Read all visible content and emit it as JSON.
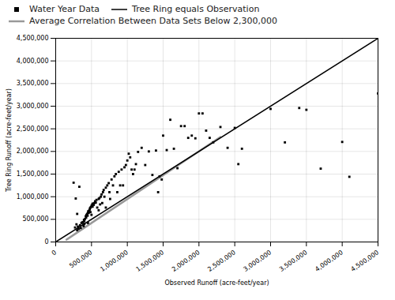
{
  "chart_data": {
    "type": "scatter",
    "xlabel": "Observed Runoff (acre-feet/year)",
    "ylabel": "Tree Ring Runoff (acre-feet/year)",
    "xlim": [
      0,
      4500000
    ],
    "ylim": [
      0,
      4500000
    ],
    "xticks": [
      0,
      {
        "value": 500000,
        "label": "500,000"
      },
      {
        "value": 1000000,
        "label": "1,000,000"
      },
      {
        "value": 1500000,
        "label": "1,500,000"
      },
      {
        "value": 2000000,
        "label": "2,000,000"
      },
      {
        "value": 2500000,
        "label": "2,500,000"
      },
      {
        "value": 3000000,
        "label": "3,000,000"
      },
      {
        "value": 3500000,
        "label": "3,500,000"
      },
      {
        "value": 4000000,
        "label": "4,000,000"
      },
      {
        "value": 4500000,
        "label": "4,500,000"
      }
    ],
    "yticks": [
      0,
      {
        "value": 500000,
        "label": "500,000"
      },
      {
        "value": 1000000,
        "label": "1,000,000"
      },
      {
        "value": 1500000,
        "label": "1,500,000"
      },
      {
        "value": 2000000,
        "label": "2,000,000"
      },
      {
        "value": 2500000,
        "label": "2,500,000"
      },
      {
        "value": 3000000,
        "label": "3,000,000"
      },
      {
        "value": 3500000,
        "label": "3,500,000"
      },
      {
        "value": 4000000,
        "label": "4,000,000"
      },
      {
        "value": 4500000,
        "label": "4,500,000"
      }
    ],
    "grid": true,
    "legend": "upper left",
    "series": [
      {
        "name": "Water Year Data",
        "type": "scatter",
        "color": "#000000",
        "marker": "square",
        "x": [
          270000,
          290000,
          300000,
          310000,
          320000,
          330000,
          340000,
          350000,
          360000,
          370000,
          380000,
          385000,
          390000,
          395000,
          400000,
          400000,
          410000,
          420000,
          425000,
          430000,
          440000,
          445000,
          450000,
          450000,
          455000,
          460000,
          470000,
          475000,
          480000,
          485000,
          490000,
          500000,
          500000,
          510000,
          515000,
          520000,
          530000,
          540000,
          550000,
          560000,
          570000,
          580000,
          600000,
          600000,
          610000,
          620000,
          630000,
          640000,
          650000,
          660000,
          670000,
          680000,
          700000,
          700000,
          720000,
          740000,
          750000,
          760000,
          780000,
          800000,
          820000,
          840000,
          860000,
          880000,
          900000,
          920000,
          940000,
          960000,
          980000,
          1000000,
          1020000,
          1040000,
          1060000,
          1080000,
          1100000,
          1120000,
          1150000,
          1200000,
          1250000,
          1300000,
          1350000,
          1400000,
          1430000,
          1450000,
          1480000,
          1500000,
          1550000,
          1600000,
          1650000,
          1700000,
          1750000,
          1800000,
          1850000,
          1900000,
          1950000,
          2000000,
          2050000,
          2100000,
          2150000,
          2200000,
          2300000,
          2400000,
          2500000,
          2550000,
          2600000,
          3000000,
          3200000,
          3400000,
          3500000,
          3700000,
          4000000,
          4100000,
          4500000,
          250000,
          280000,
          300000
        ],
        "values": [
          320000,
          390000,
          260000,
          340000,
          290000,
          1220000,
          370000,
          310000,
          420000,
          430000,
          440000,
          380000,
          350000,
          490000,
          460000,
          400000,
          510000,
          570000,
          540000,
          600000,
          620000,
          580000,
          650000,
          420000,
          680000,
          640000,
          700000,
          720000,
          750000,
          660000,
          770000,
          800000,
          600000,
          830000,
          780000,
          850000,
          820000,
          860000,
          900000,
          870000,
          930000,
          760000,
          950000,
          700000,
          970000,
          830000,
          1000000,
          1050000,
          860000,
          1100000,
          1150000,
          1000000,
          1200000,
          760000,
          1250000,
          1300000,
          1100000,
          950000,
          1380000,
          1250000,
          1450000,
          1500000,
          1100000,
          1550000,
          1250000,
          1600000,
          1250000,
          1650000,
          1700000,
          1800000,
          1950000,
          1870000,
          1600000,
          1500000,
          1600000,
          1720000,
          1990000,
          2080000,
          1700000,
          2000000,
          1480000,
          2020000,
          1100000,
          1450000,
          1380000,
          2350000,
          2030000,
          2700000,
          2060000,
          1630000,
          2560000,
          2560000,
          2300000,
          2350000,
          2290000,
          2840000,
          2840000,
          2460000,
          2300000,
          2200000,
          2540000,
          2080000,
          2520000,
          1720000,
          2060000,
          2940000,
          2200000,
          2960000,
          2920000,
          1620000,
          2210000,
          1440000,
          3280000,
          1310000,
          960000,
          620000
        ]
      },
      {
        "name": "Tree Ring equals Observation",
        "type": "line",
        "color": "#000000",
        "x": [
          0,
          4500000
        ],
        "values": [
          0,
          4500000
        ]
      },
      {
        "name": "Average Correlation Between Data Sets Below 2,300,000",
        "type": "line",
        "color": "#999999",
        "x": [
          150000,
          2300000
        ],
        "values": [
          50000,
          2320000
        ]
      }
    ]
  }
}
